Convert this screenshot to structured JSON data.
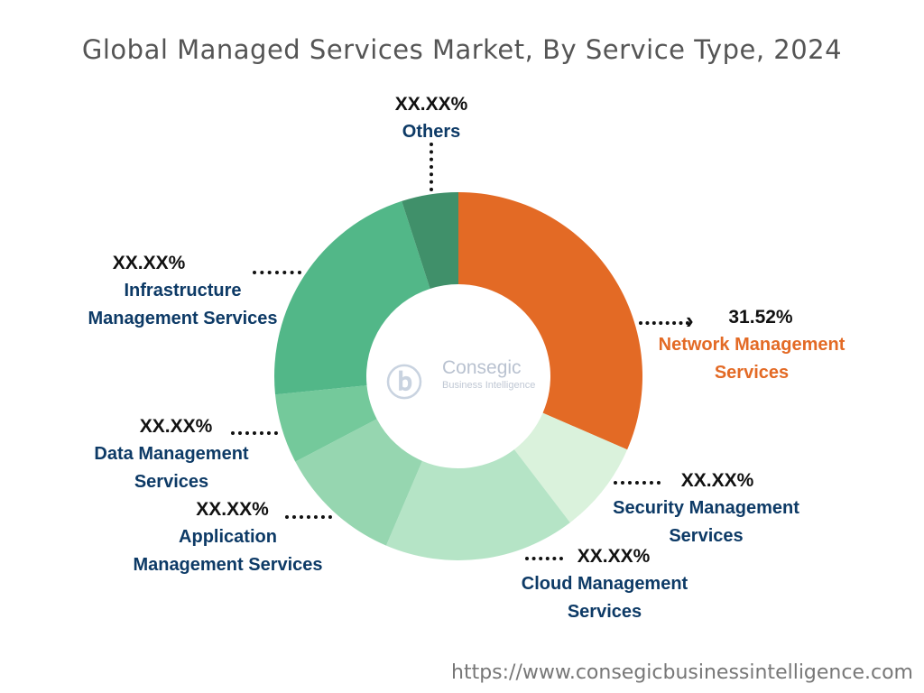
{
  "chart_data": {
    "type": "pie",
    "subtype": "donut",
    "title": "Global Managed Services Market, By Service Type, 2024",
    "categories": [
      "Network Management Services",
      "Security Management Services",
      "Cloud Management Services",
      "Application Management Services",
      "Data Management Services",
      "Infrastructure Management Services",
      "Others"
    ],
    "values": [
      31.52,
      8.1,
      16.8,
      10.9,
      6.1,
      21.6,
      4.98
    ],
    "value_labels": [
      "31.52%",
      "XX.XX%",
      "XX.XX%",
      "XX.XX%",
      "XX.XX%",
      "XX.XX%",
      "XX.XX%"
    ],
    "colors": [
      "#e36a25",
      "#daf2dc",
      "#b5e4c6",
      "#96d6b0",
      "#74c99b",
      "#52b788",
      "#40906a"
    ],
    "label_lines": [
      [
        "Network Management",
        "Services"
      ],
      [
        "Security Management",
        "Services"
      ],
      [
        "Cloud Management",
        "Services"
      ],
      [
        "Application",
        "Management Services"
      ],
      [
        "Data Management",
        "Services"
      ],
      [
        "Infrastructure",
        "Management Services"
      ],
      [
        "Others"
      ]
    ]
  },
  "logo": {
    "name": "Consegic",
    "tagline": "Business Intelligence"
  },
  "footer_url": "https://www.consegicbusinessintelligence.com"
}
